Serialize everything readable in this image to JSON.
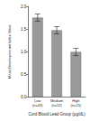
{
  "chart_data": {
    "type": "bar",
    "y_label": "Mean Developmental Index Value",
    "x_label": "Cord Blood Lead Group (µg/dL)",
    "categories": [
      "Low\n(n=43)",
      "Medium\n(n=52)",
      "High\n(n=21)"
    ],
    "values": [
      1.75,
      1.47,
      0.99
    ],
    "errors": [
      0.08,
      0.08,
      0.08
    ],
    "color": "#9a9a9a",
    "ylim": [
      0,
      2
    ],
    "yticks": [
      {
        "value": 0,
        "label": "0.0"
      },
      {
        "value": 0.5,
        "label": "0.5"
      },
      {
        "value": 1,
        "label": "1.0"
      },
      {
        "value": 1.5,
        "label": "1.5"
      },
      {
        "value": 2,
        "label": "2.0"
      }
    ],
    "grid": false
  }
}
